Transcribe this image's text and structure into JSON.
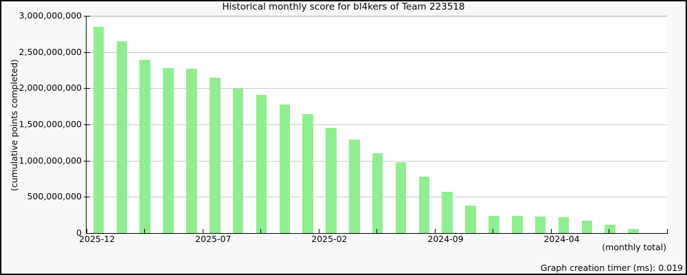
{
  "title": "Historical monthly score for bl4kers of Team 223518",
  "footer": {
    "timer_text": "Graph creation timer (ms): 0.019"
  },
  "chart_data": {
    "type": "bar",
    "title": "Historical monthly score for bl4kers of Team 223518",
    "ylabel": "(cumulative points completed)",
    "xlabel": "(monthly total)",
    "bar_color": "#90ee90",
    "grid": true,
    "legend_position": "none",
    "ylim": [
      0,
      3000000000
    ],
    "ytick_step": 500000000,
    "ytick_labels": [
      "0",
      "500,000,000",
      "1,000,000,000",
      "1,500,000,000",
      "2,000,000,000",
      "2,500,000,000",
      "3,000,000,000"
    ],
    "xtick_labels": [
      "2025-12",
      "2025-07",
      "2025-02",
      "2024-09",
      "2024-04"
    ],
    "categories": [
      "2025-12",
      "2025-11",
      "2025-10",
      "2025-09",
      "2025-08",
      "2025-07",
      "2025-06",
      "2025-05",
      "2025-04",
      "2025-03",
      "2025-02",
      "2025-01",
      "2024-12",
      "2024-11",
      "2024-10",
      "2024-09",
      "2024-08",
      "2024-07",
      "2024-06",
      "2024-05",
      "2024-04",
      "2024-03",
      "2024-02",
      "2024-01"
    ],
    "values": [
      2850000000,
      2650000000,
      2395000000,
      2280000000,
      2265000000,
      2150000000,
      1990000000,
      1905000000,
      1780000000,
      1640000000,
      1455000000,
      1290000000,
      1105000000,
      980000000,
      775000000,
      565000000,
      380000000,
      240000000,
      238000000,
      230000000,
      215000000,
      175000000,
      110000000,
      60000000
    ]
  }
}
